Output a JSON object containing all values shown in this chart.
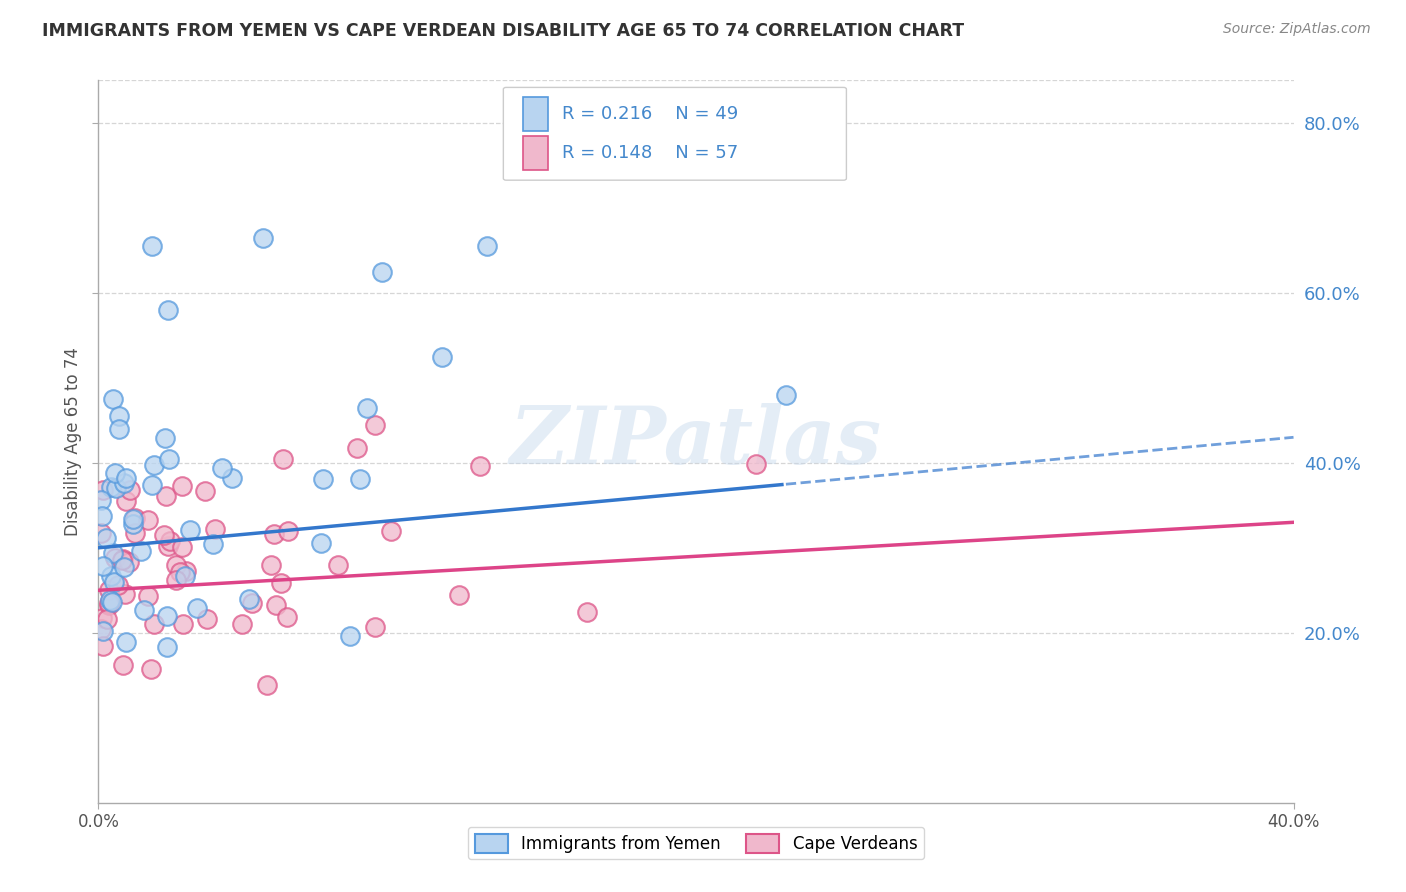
{
  "title": "IMMIGRANTS FROM YEMEN VS CAPE VERDEAN DISABILITY AGE 65 TO 74 CORRELATION CHART",
  "source": "Source: ZipAtlas.com",
  "ylabel": "Disability Age 65 to 74",
  "xlim": [
    0.0,
    0.4
  ],
  "ylim": [
    0.0,
    0.85
  ],
  "yticks": [
    0.2,
    0.4,
    0.6,
    0.8
  ],
  "ytick_labels": [
    "20.0%",
    "40.0%",
    "60.0%",
    "80.0%"
  ],
  "legend_r_yemen": "R = 0.216",
  "legend_n_yemen": "N = 49",
  "legend_r_cape": "R = 0.148",
  "legend_n_cape": "N = 57",
  "yemen_fill_color": "#b8d4f0",
  "yemen_edge_color": "#5599dd",
  "cape_fill_color": "#f0b8cc",
  "cape_edge_color": "#dd5588",
  "yemen_line_color": "#3377cc",
  "cape_line_color": "#dd4488",
  "background_color": "#ffffff",
  "grid_color": "#cccccc",
  "watermark": "ZIPatlas",
  "tick_label_color": "#4488cc",
  "title_color": "#333333",
  "source_color": "#888888"
}
